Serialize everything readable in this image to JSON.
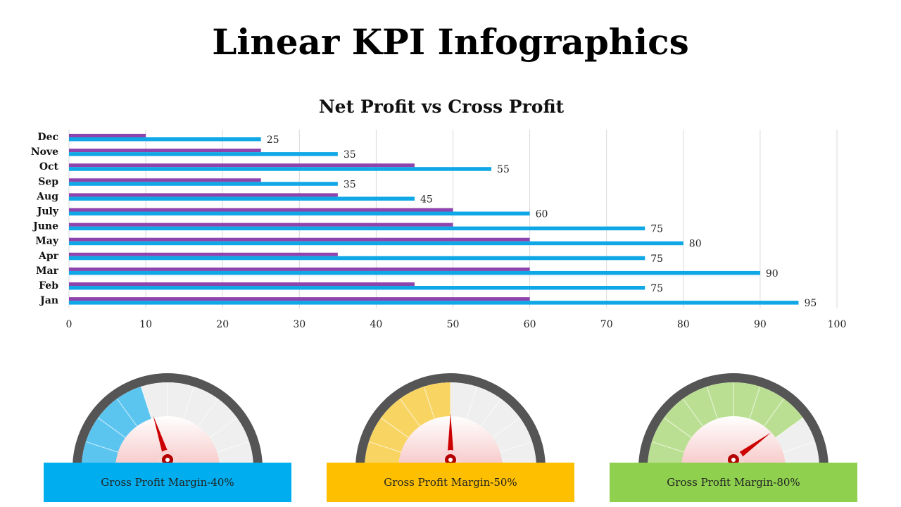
{
  "title": "Linear KPI Infographics",
  "chart_data": {
    "type": "bar",
    "orientation": "horizontal",
    "title": "Net Profit vs Cross Profit",
    "categories": [
      "Jan",
      "Feb",
      "Mar",
      "Apr",
      "May",
      "June",
      "July",
      "Aug",
      "Sep",
      "Oct",
      "Nove",
      "Dec"
    ],
    "series": [
      {
        "name": "Net Profit",
        "color": "#8e44ad",
        "values": [
          60,
          45,
          60,
          35,
          60,
          50,
          50,
          35,
          25,
          45,
          25,
          10
        ]
      },
      {
        "name": "Cross Profit",
        "color": "#0fa7e6",
        "values": [
          95,
          75,
          90,
          75,
          80,
          75,
          60,
          45,
          35,
          55,
          35,
          25
        ]
      }
    ],
    "data_labels_series": "Cross Profit",
    "xlim": [
      0,
      100
    ],
    "x_ticks": [
      0,
      10,
      20,
      30,
      40,
      50,
      60,
      70,
      80,
      90,
      100
    ],
    "grid": true,
    "xlabel": "",
    "ylabel": ""
  },
  "gauges": [
    {
      "label": "Gross Profit Margin-40%",
      "value": 40,
      "color": "#5bc5f0",
      "box_color": "#00aeef"
    },
    {
      "label": "Gross Profit Margin-50%",
      "value": 50,
      "color": "#f8d463",
      "box_color": "#fdbf00"
    },
    {
      "label": "Gross Profit Margin-80%",
      "value": 80,
      "color": "#bbdf92",
      "box_color": "#8fd14f"
    }
  ]
}
